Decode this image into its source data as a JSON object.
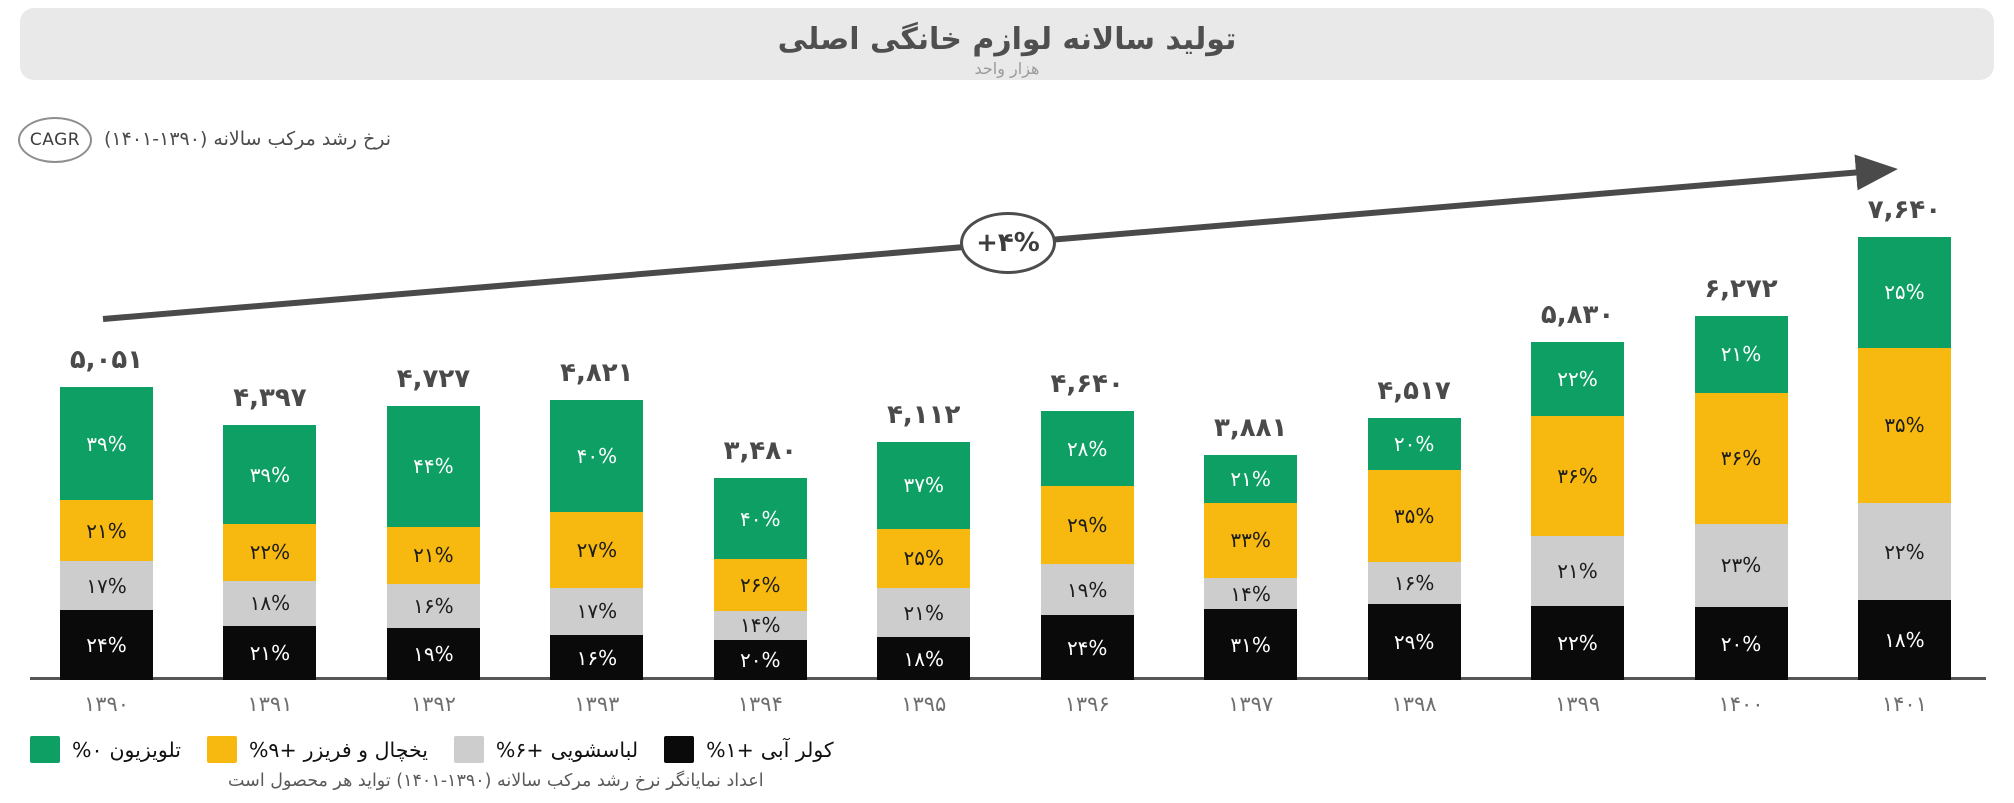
{
  "title": {
    "text": "تولید سالانه لوازم خانگی اصلی",
    "subtitle": "هزار واحد"
  },
  "cagr": {
    "badge": "CAGR",
    "label": "نرخ رشد مرکب سالانه (۱۳۹۰-۱۴۰۱)",
    "arrow_value": "+۴%"
  },
  "footnote": "اعداد نمایانگر نرخ رشد مرکب سالانه (۱۳۹۰-۱۴۰۱) تواید هر محصول است",
  "colors": {
    "tv_green": "#0d9f63",
    "fridge_yellow": "#f7b80f",
    "washer_gray": "#cdcdcd",
    "cooler_black": "#0a0a0a",
    "banner_gray": "#e9e9e9",
    "arrow_gray": "#4a4a4a"
  },
  "chart_data": {
    "type": "bar",
    "stacked": true,
    "title": "تولید سالانه لوازم خانگی اصلی",
    "unit_label": "هزار واحد",
    "overall_cagr_display": "+۴%",
    "value_axis": {
      "visible": false,
      "max": 7640
    },
    "categories": [
      "۱۳۹۰",
      "۱۳۹۱",
      "۱۳۹۲",
      "۱۳۹۳",
      "۱۳۹۴",
      "۱۳۹۵",
      "۱۳۹۶",
      "۱۳۹۷",
      "۱۳۹۸",
      "۱۳۹۹",
      "۱۴۰۰",
      "۱۴۰۱"
    ],
    "categories_latin": [
      1390,
      1391,
      1392,
      1393,
      1394,
      1395,
      1396,
      1397,
      1398,
      1399,
      1400,
      1401
    ],
    "totals": [
      5051,
      4397,
      4727,
      4821,
      3480,
      4112,
      4640,
      3881,
      4517,
      5830,
      6272,
      7640
    ],
    "totals_display": [
      "۵,۰۵۱",
      "۴,۳۹۷",
      "۴,۷۲۷",
      "۴,۸۲۱",
      "۳,۴۸۰",
      "۴,۱۱۲",
      "۴,۶۴۰",
      "۳,۸۸۱",
      "۴,۵۱۷",
      "۵,۸۳۰",
      "۶,۲۷۲",
      "۷,۶۴۰"
    ],
    "series": [
      {
        "name": "تلویزیون",
        "cagr_display": "%۰",
        "color": "#0d9f63",
        "label_color": "#ffffff",
        "values_pct": [
          39,
          39,
          44,
          40,
          40,
          37,
          28,
          21,
          20,
          22,
          21,
          25
        ],
        "labels": [
          "۳۹%",
          "۳۹%",
          "۴۴%",
          "۴۰%",
          "۴۰%",
          "۳۷%",
          "۲۸%",
          "۲۱%",
          "۲۰%",
          "۲۲%",
          "۲۱%",
          "۲۵%"
        ]
      },
      {
        "name": "یخچال و فریزر",
        "cagr_display": "%۹+",
        "color": "#f7b80f",
        "label_color": "#1c1c1c",
        "values_pct": [
          21,
          22,
          21,
          27,
          26,
          25,
          29,
          33,
          35,
          36,
          36,
          35
        ],
        "labels": [
          "۲۱%",
          "۲۲%",
          "۲۱%",
          "۲۷%",
          "۲۶%",
          "۲۵%",
          "۲۹%",
          "۳۳%",
          "۳۵%",
          "۳۶%",
          "۳۶%",
          "۳۵%"
        ]
      },
      {
        "name": "لباسشویی",
        "cagr_display": "%۶+",
        "color": "#cdcdcd",
        "label_color": "#1c1c1c",
        "values_pct": [
          17,
          18,
          16,
          17,
          14,
          21,
          19,
          14,
          16,
          21,
          23,
          22
        ],
        "labels": [
          "۱۷%",
          "۱۸%",
          "۱۶%",
          "۱۷%",
          "۱۴%",
          "۲۱%",
          "۱۹%",
          "۱۴%",
          "۱۶%",
          "۲۱%",
          "۲۳%",
          "۲۲%"
        ]
      },
      {
        "name": "کولر آبی",
        "cagr_display": "%۱+",
        "color": "#0a0a0a",
        "label_color": "#ffffff",
        "values_pct": [
          24,
          21,
          19,
          16,
          20,
          18,
          24,
          31,
          29,
          22,
          20,
          18
        ],
        "labels": [
          "۲۴%",
          "۲۱%",
          "۱۹%",
          "۱۶%",
          "۲۰%",
          "۱۸%",
          "۲۴%",
          "۳۱%",
          "۲۹%",
          "۲۲%",
          "۲۰%",
          "۱۸%"
        ]
      }
    ]
  }
}
